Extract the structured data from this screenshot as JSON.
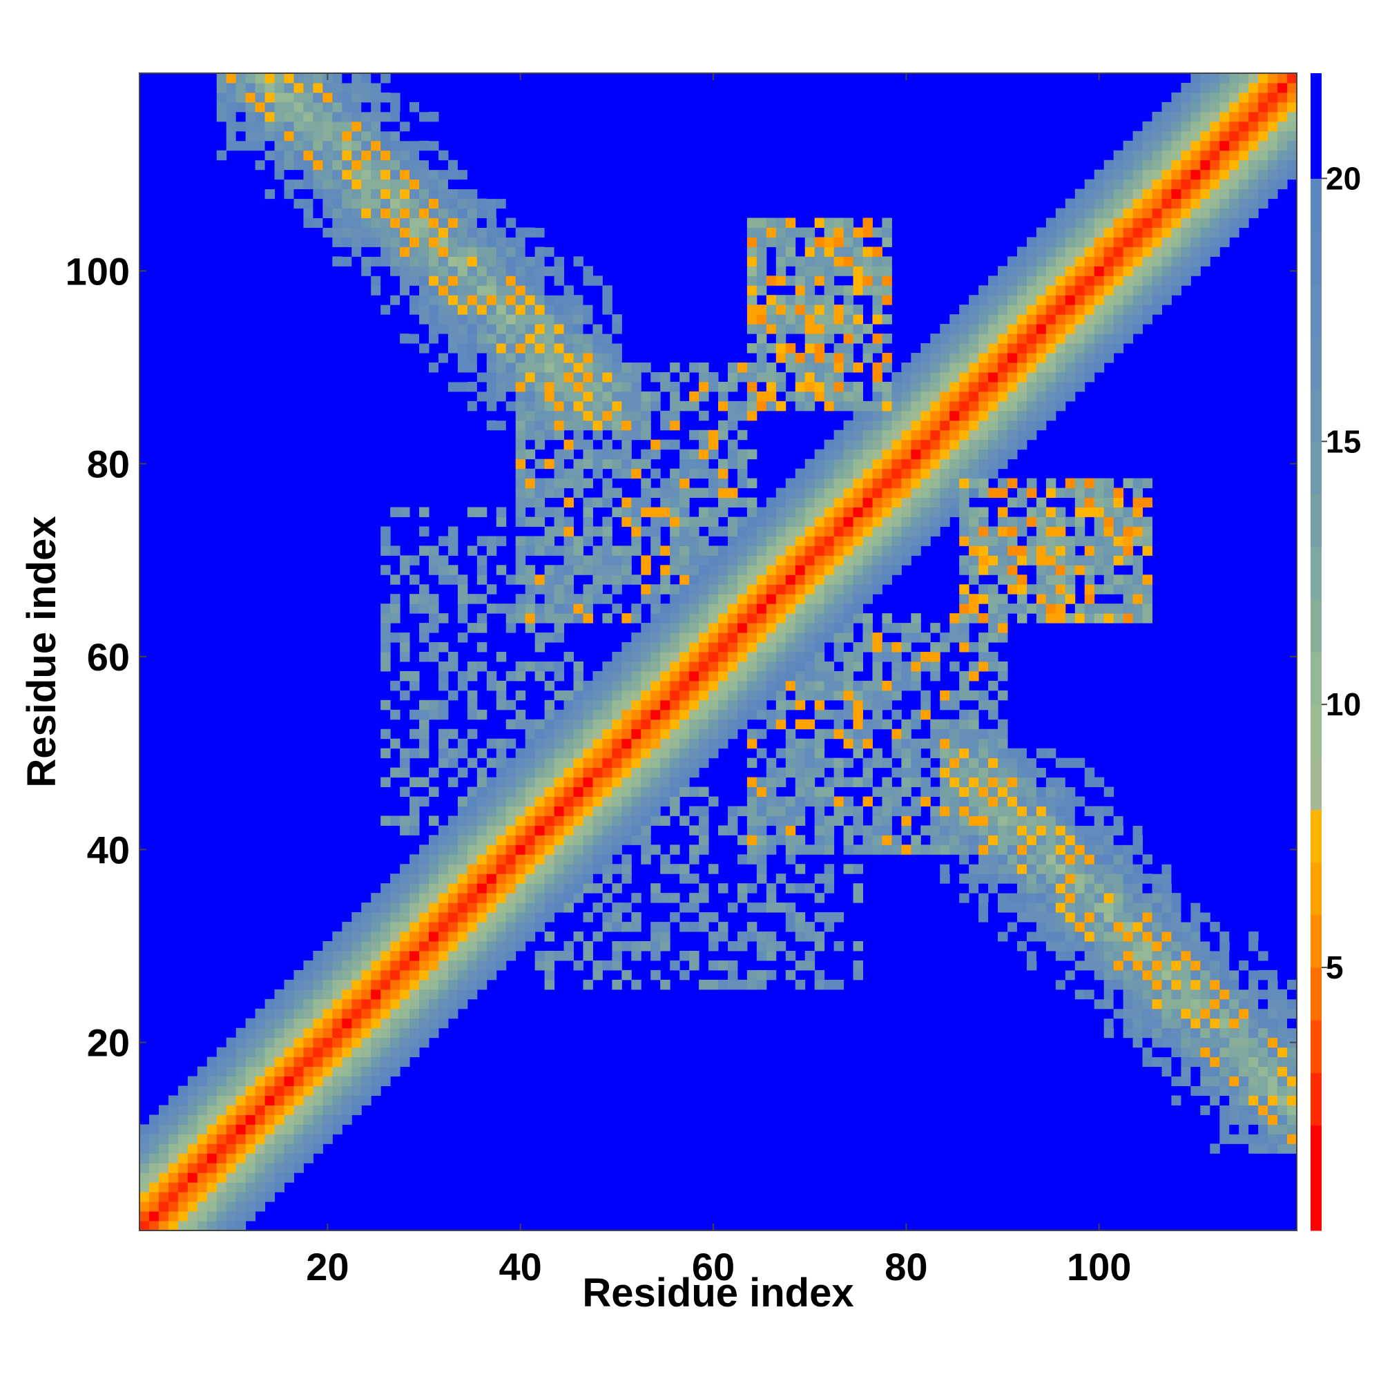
{
  "chart_data": {
    "type": "heatmap",
    "title": "",
    "xlabel": "Residue index",
    "ylabel": "Residue index",
    "n_residues": 120,
    "xlim": [
      1,
      120
    ],
    "ylim": [
      1,
      120
    ],
    "x_ticks": [
      20,
      40,
      60,
      80,
      100
    ],
    "y_ticks": [
      20,
      40,
      60,
      80,
      100
    ],
    "colorbar": {
      "ticks": [
        5,
        10,
        15,
        20
      ],
      "range": [
        0,
        22
      ],
      "levels": [
        {
          "max": 2,
          "color": "#ff0000"
        },
        {
          "max": 3,
          "color": "#ff2a00"
        },
        {
          "max": 4,
          "color": "#ff5000"
        },
        {
          "max": 5,
          "color": "#ff6f00"
        },
        {
          "max": 6,
          "color": "#ff8c00"
        },
        {
          "max": 7,
          "color": "#ffa200"
        },
        {
          "max": 8,
          "color": "#ffb400"
        },
        {
          "max": 9,
          "color": "#a3b994"
        },
        {
          "max": 10,
          "color": "#9dbb92"
        },
        {
          "max": 11,
          "color": "#94b895"
        },
        {
          "max": 12,
          "color": "#88ae9a"
        },
        {
          "max": 13,
          "color": "#7ea8a0"
        },
        {
          "max": 14,
          "color": "#76a0a6"
        },
        {
          "max": 15,
          "color": "#6f99ad"
        },
        {
          "max": 16,
          "color": "#6a94b3"
        },
        {
          "max": 17,
          "color": "#6690b8"
        },
        {
          "max": 18,
          "color": "#628cbb"
        },
        {
          "max": 19,
          "color": "#5f89bd"
        },
        {
          "max": 20,
          "color": "#5c87be"
        },
        {
          "max": 22,
          "color": "#0000ff"
        }
      ]
    },
    "background_value": 22,
    "contact_regions": [
      {
        "x": [
          9,
          50
        ],
        "y": [
          85,
          120
        ],
        "kind": "antiparallel-beta-sheet"
      },
      {
        "x": [
          85,
          120
        ],
        "y": [
          9,
          50
        ],
        "kind": "antiparallel-beta-sheet"
      },
      {
        "x": [
          64,
          78
        ],
        "y": [
          86,
          105
        ],
        "kind": "helix-contacts"
      },
      {
        "x": [
          86,
          105
        ],
        "y": [
          64,
          78
        ],
        "kind": "helix-contacts"
      },
      {
        "x": [
          26,
          46
        ],
        "y": [
          42,
          75
        ],
        "kind": "sparse-contacts"
      },
      {
        "x": [
          42,
          75
        ],
        "y": [
          26,
          46
        ],
        "kind": "sparse-contacts"
      }
    ]
  }
}
